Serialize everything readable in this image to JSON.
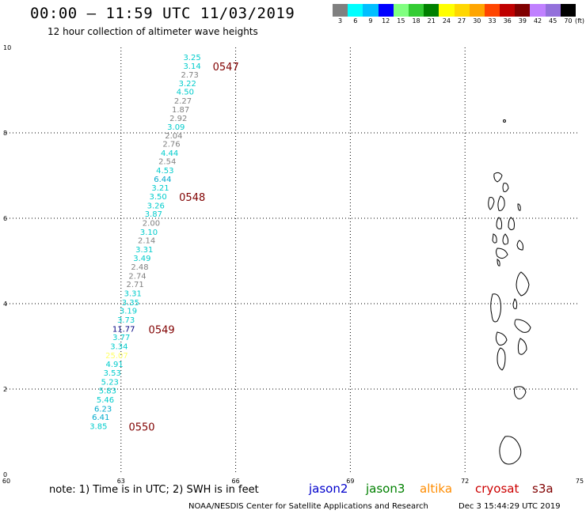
{
  "header": {
    "title": "00:00 – 11:59 UTC 11/03/2019",
    "subtitle": "12 hour collection of altimeter wave heights"
  },
  "legend": {
    "colors": [
      "#808080",
      "#00ffff",
      "#00bfff",
      "#0000ff",
      "#80ff80",
      "#33cc33",
      "#008000",
      "#ffff00",
      "#ffd700",
      "#ffa500",
      "#ff4500",
      "#c00000",
      "#800000",
      "#c080ff",
      "#9370db",
      "#000000"
    ],
    "labels": [
      "3",
      "6",
      "9",
      "12",
      "15",
      "18",
      "21",
      "24",
      "27",
      "30",
      "33",
      "36",
      "39",
      "42",
      "45",
      "70"
    ],
    "unit": "(ft)"
  },
  "chart_data": {
    "type": "scatter",
    "title": "00:00 – 11:59 UTC 11/03/2019",
    "subtitle": "12 hour collection of altimeter wave heights",
    "xlim": [
      60,
      75
    ],
    "ylim": [
      0,
      10
    ],
    "x_ticks": [
      "60",
      "63",
      "66",
      "69",
      "72",
      "75"
    ],
    "y_ticks": [
      "0",
      "2",
      "4",
      "6",
      "8",
      "10"
    ],
    "grid": true,
    "series": [
      {
        "name": "jason2",
        "color": "#0000cc",
        "points": []
      },
      {
        "name": "jason3",
        "color": "#008000",
        "points": []
      },
      {
        "name": "altika",
        "color": "#ff8c00",
        "points": []
      },
      {
        "name": "cryosat",
        "color": "#cc0000",
        "points": []
      },
      {
        "name": "s3a",
        "color": "#800000",
        "points": [
          {
            "x": 64.86,
            "y": 9.76,
            "label": "3.25",
            "color": "#00cccc"
          },
          {
            "x": 64.86,
            "y": 9.56,
            "label": "3.14",
            "color": "#00cccc"
          },
          {
            "x": 64.8,
            "y": 9.35,
            "label": "2.73",
            "color": "#808080"
          },
          {
            "x": 64.74,
            "y": 9.15,
            "label": "3.22",
            "color": "#00cccc"
          },
          {
            "x": 64.68,
            "y": 8.95,
            "label": "4.50",
            "color": "#00cccc"
          },
          {
            "x": 64.62,
            "y": 8.74,
            "label": "2.27",
            "color": "#808080"
          },
          {
            "x": 64.56,
            "y": 8.54,
            "label": "1.87",
            "color": "#808080"
          },
          {
            "x": 64.5,
            "y": 8.33,
            "label": "2.92",
            "color": "#808080"
          },
          {
            "x": 64.44,
            "y": 8.13,
            "label": "3.09",
            "color": "#00cccc"
          },
          {
            "x": 64.38,
            "y": 7.93,
            "label": "2.04",
            "color": "#808080"
          },
          {
            "x": 64.32,
            "y": 7.73,
            "label": "2.76",
            "color": "#808080"
          },
          {
            "x": 64.27,
            "y": 7.52,
            "label": "4.44",
            "color": "#00cccc"
          },
          {
            "x": 64.21,
            "y": 7.32,
            "label": "2.54",
            "color": "#808080"
          },
          {
            "x": 64.15,
            "y": 7.11,
            "label": "4.53",
            "color": "#00cccc"
          },
          {
            "x": 64.09,
            "y": 6.91,
            "label": "6.44",
            "color": "#00aacc"
          },
          {
            "x": 64.03,
            "y": 6.7,
            "label": "3.21",
            "color": "#00cccc"
          },
          {
            "x": 63.97,
            "y": 6.5,
            "label": "3.50",
            "color": "#00cccc"
          },
          {
            "x": 63.91,
            "y": 6.29,
            "label": "3.26",
            "color": "#00cccc"
          },
          {
            "x": 63.85,
            "y": 6.09,
            "label": "3.87",
            "color": "#00cccc"
          },
          {
            "x": 63.79,
            "y": 5.88,
            "label": "2.00",
            "color": "#808080"
          },
          {
            "x": 63.73,
            "y": 5.67,
            "label": "3.10",
            "color": "#00cccc"
          },
          {
            "x": 63.67,
            "y": 5.47,
            "label": "2.14",
            "color": "#808080"
          },
          {
            "x": 63.61,
            "y": 5.26,
            "label": "3.31",
            "color": "#00cccc"
          },
          {
            "x": 63.55,
            "y": 5.06,
            "label": "3.49",
            "color": "#00cccc"
          },
          {
            "x": 63.49,
            "y": 4.85,
            "label": "2.48",
            "color": "#808080"
          },
          {
            "x": 63.43,
            "y": 4.64,
            "label": "2.74",
            "color": "#808080"
          },
          {
            "x": 63.37,
            "y": 4.44,
            "label": "2.71",
            "color": "#808080"
          },
          {
            "x": 63.31,
            "y": 4.23,
            "label": "3.31",
            "color": "#00cccc"
          },
          {
            "x": 63.25,
            "y": 4.02,
            "label": "3.35",
            "color": "#00cccc"
          },
          {
            "x": 63.19,
            "y": 3.82,
            "label": "3.19",
            "color": "#00cccc"
          },
          {
            "x": 63.13,
            "y": 3.61,
            "label": "3.73",
            "color": "#00cccc"
          },
          {
            "x": 63.07,
            "y": 3.4,
            "label": "11.77",
            "color": "#000080"
          },
          {
            "x": 63.01,
            "y": 3.2,
            "label": "3.77",
            "color": "#00cccc"
          },
          {
            "x": 62.95,
            "y": 2.99,
            "label": "3.34",
            "color": "#00cccc"
          },
          {
            "x": 62.89,
            "y": 2.78,
            "label": "25.07",
            "color": "#ffff66"
          },
          {
            "x": 62.83,
            "y": 2.57,
            "label": "4.91",
            "color": "#00cccc"
          },
          {
            "x": 62.77,
            "y": 2.37,
            "label": "3.53",
            "color": "#00cccc"
          },
          {
            "x": 62.71,
            "y": 2.16,
            "label": "5.23",
            "color": "#00cccc"
          },
          {
            "x": 62.65,
            "y": 1.95,
            "label": "5.83",
            "color": "#00cccc"
          },
          {
            "x": 62.59,
            "y": 1.74,
            "label": "5.46",
            "color": "#00cccc"
          },
          {
            "x": 62.53,
            "y": 1.53,
            "label": "6.23",
            "color": "#00aacc"
          },
          {
            "x": 62.47,
            "y": 1.33,
            "label": "6.41",
            "color": "#00aacc"
          },
          {
            "x": 62.41,
            "y": 1.12,
            "label": "3.85",
            "color": "#00cccc"
          }
        ]
      }
    ],
    "time_annotations": [
      {
        "label": "0547",
        "x": 65.4,
        "y": 9.56
      },
      {
        "label": "0548",
        "x": 64.52,
        "y": 6.5
      },
      {
        "label": "0549",
        "x": 63.72,
        "y": 3.4
      },
      {
        "label": "0550",
        "x": 63.2,
        "y": 1.12
      }
    ]
  },
  "footer": {
    "note": "note: 1) Time is in UTC; 2) SWH is in feet",
    "satellites": [
      {
        "name": "jason2",
        "color": "#0000cc"
      },
      {
        "name": "jason3",
        "color": "#008000"
      },
      {
        "name": "altika",
        "color": "#ff8c00"
      },
      {
        "name": "cryosat",
        "color": "#cc0000"
      },
      {
        "name": "s3a",
        "color": "#800000"
      }
    ],
    "credit": "NOAA/NESDIS Center for Satellite Applications and Research",
    "timestamp": "Dec  3 15:44:29 UTC 2019"
  }
}
